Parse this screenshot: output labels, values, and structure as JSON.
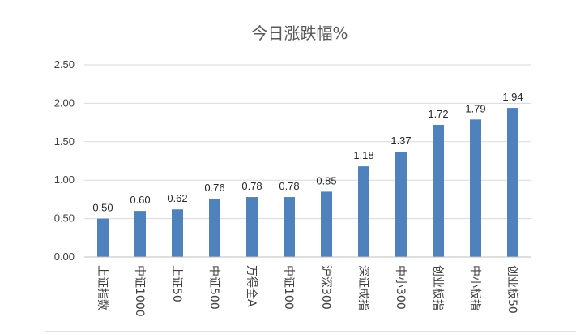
{
  "chart_data": {
    "type": "bar",
    "title": "今日涨跌幅%",
    "xlabel": "",
    "ylabel": "",
    "categories": [
      "上证指数",
      "中证1000",
      "上证50",
      "中证500",
      "万得全A",
      "中证100",
      "沪深300",
      "深证成指",
      "中小300",
      "创业板指",
      "中小板指",
      "创业板50"
    ],
    "values": [
      0.5,
      0.6,
      0.62,
      0.76,
      0.78,
      0.78,
      0.85,
      1.18,
      1.37,
      1.72,
      1.79,
      1.94
    ],
    "value_labels": [
      "0.50",
      "0.60",
      "0.62",
      "0.76",
      "0.78",
      "0.78",
      "0.85",
      "1.18",
      "1.37",
      "1.72",
      "1.79",
      "1.94"
    ],
    "ylim": [
      0,
      2.5
    ],
    "yticks": [
      "0.00",
      "0.50",
      "1.00",
      "1.50",
      "2.00",
      "2.50"
    ],
    "grid": true,
    "legend": "none",
    "bar_color": "#4F81BD"
  }
}
